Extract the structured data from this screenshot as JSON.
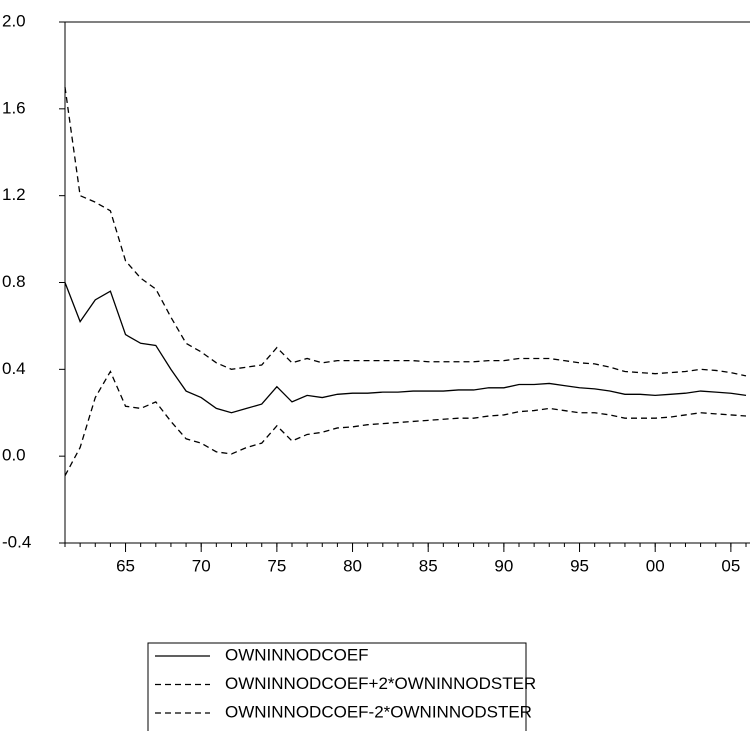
{
  "chart_data": {
    "type": "line",
    "x": [
      1961,
      1962,
      1963,
      1964,
      1965,
      1966,
      1967,
      1968,
      1969,
      1970,
      1971,
      1972,
      1973,
      1974,
      1975,
      1976,
      1977,
      1978,
      1979,
      1980,
      1981,
      1982,
      1983,
      1984,
      1985,
      1986,
      1987,
      1988,
      1989,
      1990,
      1991,
      1992,
      1993,
      1994,
      1995,
      1996,
      1997,
      1998,
      1999,
      2000,
      2001,
      2002,
      2003,
      2004,
      2005,
      2006
    ],
    "xlim": [
      1961,
      2006
    ],
    "xticks": [
      {
        "value": 1965,
        "label": "65"
      },
      {
        "value": 1970,
        "label": "70"
      },
      {
        "value": 1975,
        "label": "75"
      },
      {
        "value": 1980,
        "label": "80"
      },
      {
        "value": 1985,
        "label": "85"
      },
      {
        "value": 1990,
        "label": "90"
      },
      {
        "value": 1995,
        "label": "95"
      },
      {
        "value": 2000,
        "label": "00"
      },
      {
        "value": 2005,
        "label": "05"
      }
    ],
    "ylim": [
      -0.4,
      2.0
    ],
    "yticks": [
      {
        "value": -0.4,
        "label": "-0.4"
      },
      {
        "value": 0,
        "label": "0.0"
      },
      0.4,
      0.8,
      1.2,
      1.6,
      {
        "value": 2,
        "label": "2.0"
      }
    ],
    "grid": false,
    "series": [
      {
        "name": "OWNINNODCOEF",
        "color": "#000000",
        "line_style": "solid",
        "values": [
          0.8,
          0.62,
          0.72,
          0.76,
          0.56,
          0.52,
          0.51,
          0.4,
          0.3,
          0.27,
          0.22,
          0.2,
          0.22,
          0.24,
          0.32,
          0.25,
          0.28,
          0.27,
          0.285,
          0.29,
          0.29,
          0.295,
          0.295,
          0.3,
          0.3,
          0.3,
          0.305,
          0.305,
          0.315,
          0.315,
          0.33,
          0.33,
          0.335,
          0.325,
          0.315,
          0.31,
          0.3,
          0.285,
          0.285,
          0.28,
          0.285,
          0.29,
          0.3,
          0.295,
          0.29,
          0.28
        ]
      },
      {
        "name": "OWNINNODCOEF+2*OWNINNODSTER",
        "color": "#000000",
        "line_style": "dashed",
        "values": [
          1.7,
          1.2,
          1.17,
          1.13,
          0.9,
          0.82,
          0.77,
          0.64,
          0.52,
          0.48,
          0.43,
          0.4,
          0.41,
          0.42,
          0.5,
          0.43,
          0.45,
          0.43,
          0.44,
          0.44,
          0.44,
          0.44,
          0.44,
          0.44,
          0.435,
          0.435,
          0.435,
          0.435,
          0.44,
          0.44,
          0.45,
          0.45,
          0.45,
          0.44,
          0.43,
          0.425,
          0.41,
          0.39,
          0.385,
          0.38,
          0.385,
          0.39,
          0.4,
          0.395,
          0.385,
          0.37
        ]
      },
      {
        "name": "OWNINNODCOEF-2*OWNINNODSTER",
        "color": "#000000",
        "line_style": "dashed",
        "values": [
          -0.09,
          0.04,
          0.27,
          0.39,
          0.23,
          0.22,
          0.25,
          0.16,
          0.08,
          0.06,
          0.02,
          0.01,
          0.04,
          0.06,
          0.14,
          0.07,
          0.1,
          0.11,
          0.13,
          0.135,
          0.145,
          0.15,
          0.155,
          0.16,
          0.165,
          0.17,
          0.175,
          0.175,
          0.185,
          0.19,
          0.205,
          0.21,
          0.22,
          0.21,
          0.2,
          0.2,
          0.19,
          0.175,
          0.175,
          0.175,
          0.18,
          0.19,
          0.2,
          0.195,
          0.19,
          0.185
        ]
      }
    ],
    "legend": "bottom"
  }
}
